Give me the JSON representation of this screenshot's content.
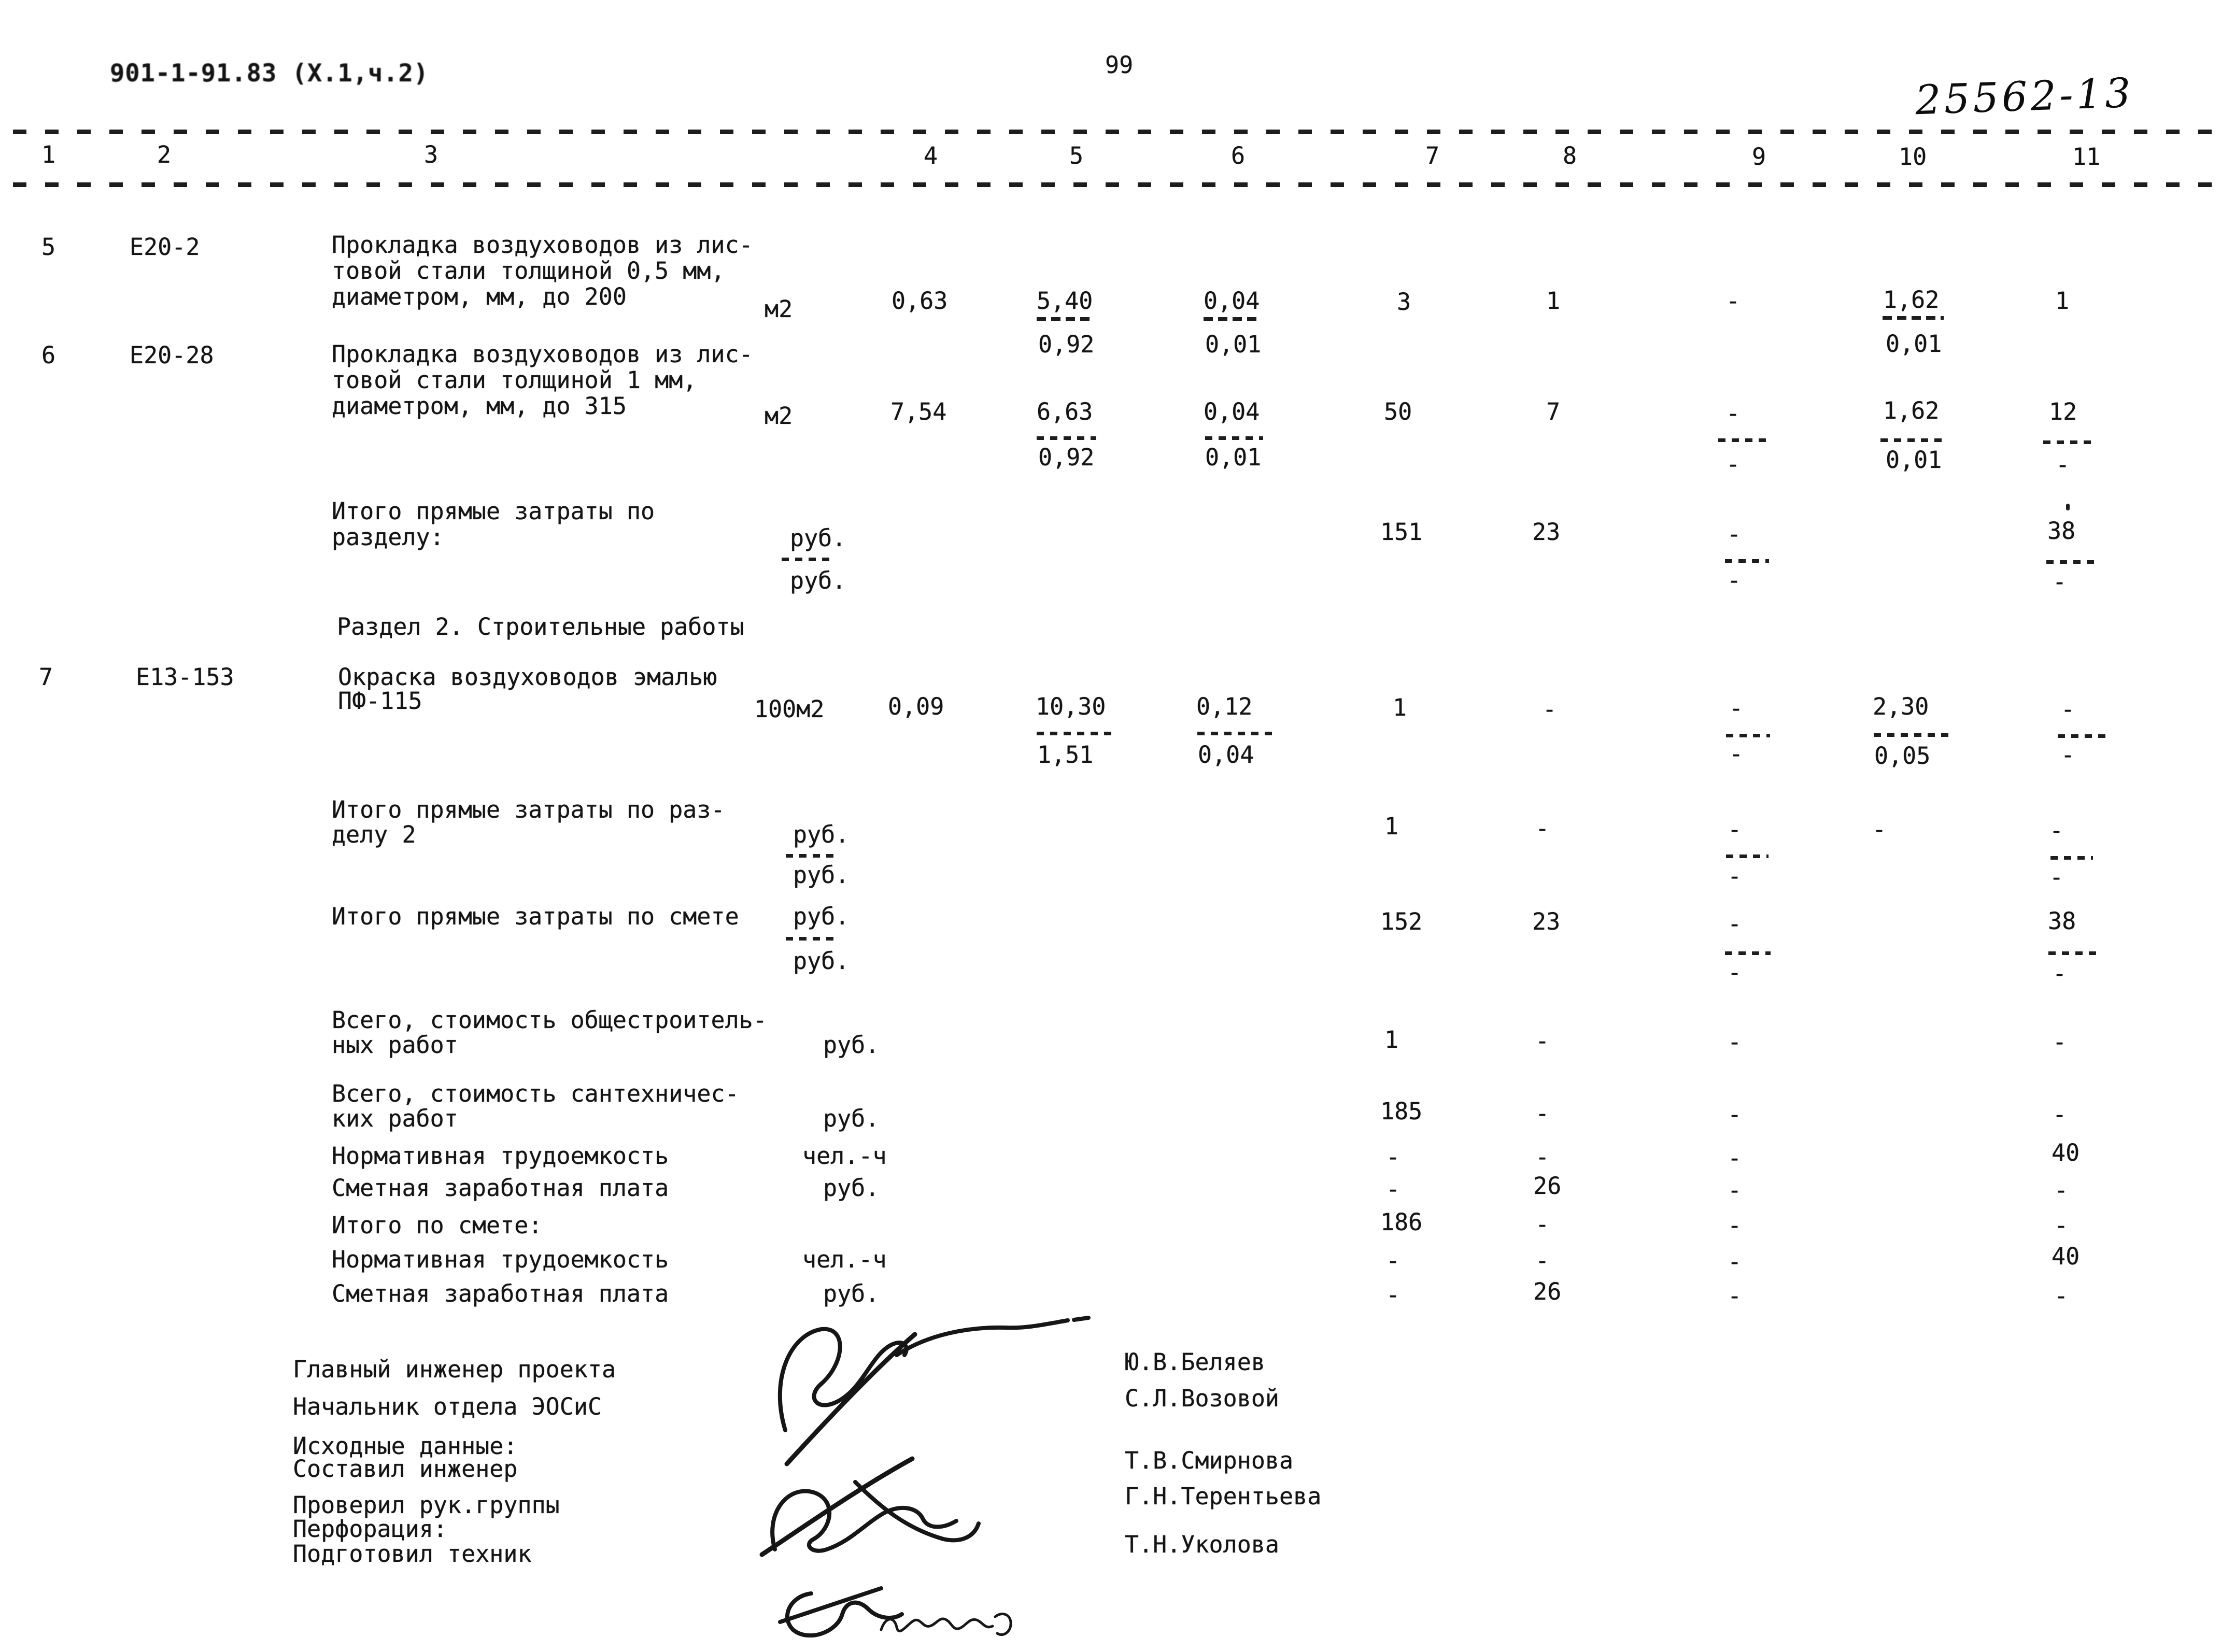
{
  "page": {
    "doc_code": "901-1-91.83 (Х.1,ч.2)",
    "page_number": "99",
    "sheet_number": "25562-13"
  },
  "table": {
    "headers": [
      "1",
      "2",
      "3",
      "4",
      "5",
      "6",
      "7",
      "8",
      "9",
      "10",
      "11"
    ],
    "row5": {
      "num": "5",
      "code": "Е20-2",
      "desc1": "Прокладка воздуховодов из лис-",
      "desc2": "товой стали толщиной 0,5 мм,",
      "desc3": "диаметром, мм, до 200",
      "unit": "м2",
      "c4": "0,63",
      "c5_top": "5,40",
      "c5_bot": "0,92",
      "c6_top": "0,04",
      "c6_bot": "0,01",
      "c7": "3",
      "c8": "1",
      "c9": "-",
      "c10_top": "1,62",
      "c10_bot": "0,01",
      "c11": "1"
    },
    "row6": {
      "num": "6",
      "code": "Е20-28",
      "desc1": "Прокладка воздуховодов из лис-",
      "desc2": "товой стали толщиной 1 мм,",
      "desc3": "диаметром, мм, до 315",
      "unit": "м2",
      "c4": "7,54",
      "c5_top": "6,63",
      "c5_bot": "0,92",
      "c6_top": "0,04",
      "c6_bot": "0,01",
      "c7": "50",
      "c8": "7",
      "c9_top": "-",
      "c9_bot": "-",
      "c10_top": "1,62",
      "c10_bot": "0,01",
      "c11_top": "12",
      "c11_bot": "-"
    },
    "subtotal1": {
      "label1": "Итого прямые затраты по",
      "label2": "разделу:",
      "unit1": "руб.",
      "unit2": "руб.",
      "c7": "151",
      "c8": "23",
      "c9_top": "-",
      "c9_bot": "-",
      "c11_top": "38",
      "c11_bot": "-"
    },
    "section2": "Раздел 2. Строительные работы",
    "row7": {
      "num": "7",
      "code": "Е13-153",
      "desc1": "Окраска воздуховодов эмалью",
      "desc2": "ПФ-115",
      "unit": "100м2",
      "c4": "0,09",
      "c5_top": "10,30",
      "c5_bot": "1,51",
      "c6_top": "0,12",
      "c6_bot": "0,04",
      "c7": "1",
      "c8": "-",
      "c9_top": "-",
      "c9_bot": "-",
      "c10_top": "2,30",
      "c10_bot": "0,05",
      "c11_top": "-",
      "c11_bot": "-"
    },
    "subtotal2": {
      "label1": "Итого прямые затраты по раз-",
      "label2": "делу 2",
      "unit1": "руб.",
      "unit2": "руб.",
      "c7": "1",
      "c8": "-",
      "c9_top": "-",
      "c9_bot": "-",
      "c10": "-",
      "c11_top": "-",
      "c11_bot": "-"
    },
    "totals": {
      "label": "Итого прямые затраты по смете",
      "unit1": "руб.",
      "unit2": "руб.",
      "c7": "152",
      "c8": "23",
      "c9_top": "-",
      "c9_bot": "-",
      "c11_top": "38",
      "c11_bot": "-"
    },
    "summary": [
      {
        "label1": "Всего, стоимость общестроитель-",
        "label2": "ных работ",
        "unit": "руб.",
        "c7": "1",
        "c8": "-",
        "c9": "-",
        "c11": "-"
      },
      {
        "label1": "Всего, стоимость сантехничес-",
        "label2": "ких работ",
        "unit": "руб.",
        "c7": "185",
        "c8": "-",
        "c9": "-",
        "c11": "-"
      },
      {
        "label1": "Нормативная трудоемкость",
        "unit": "чел.-ч",
        "c7": "-",
        "c8": "-",
        "c9": "-",
        "c11": "40"
      },
      {
        "label1": "Сметная заработная плата",
        "unit": "руб.",
        "c7": "-",
        "c8": "26",
        "c9": "-",
        "c11": "-"
      },
      {
        "label1": "Итого по смете:",
        "c7": "186",
        "c8": "-",
        "c9": "-",
        "c11": "-"
      },
      {
        "label1": "Нормативная трудоемкость",
        "unit": "чел.-ч",
        "c7": "-",
        "c8": "-",
        "c9": "-",
        "c11": "40"
      },
      {
        "label1": "Сметная заработная плата",
        "unit": "руб.",
        "c7": "-",
        "c8": "26",
        "c9": "-",
        "c11": "-"
      }
    ]
  },
  "footer": {
    "roles": [
      "Главный инженер проекта",
      "Начальник отдела ЭОСиС",
      "Исходные данные:",
      "Составил инженер",
      "Проверил рук.группы",
      "Перфорация:",
      "Подготовил техник"
    ],
    "names": [
      "Ю.В.Беляев",
      "С.Л.Возовой",
      "Т.В.Смирнова",
      "Г.Н.Терентьева",
      "Т.Н.Уколова"
    ]
  }
}
